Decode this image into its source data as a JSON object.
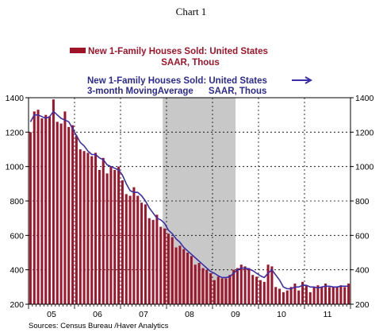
{
  "title": "Chart 1",
  "source": "Sources:  Census Bureau /Haver Analytics",
  "colors": {
    "bars": "#a0142a",
    "line": "#3a2fa8",
    "recession": "#c8c8c8",
    "bar_legend_text": "#a0142a",
    "line_legend_text": "#2c2a8f"
  },
  "chart_data": {
    "type": "bar",
    "legend": [
      {
        "line1": "New 1-Family Houses Sold: United States",
        "line2": "SAAR, Thous"
      },
      {
        "line1": "New 1-Family Houses Sold: United States",
        "line2": "3-month MovingAverage      SAAR, Thous"
      }
    ],
    "x_tick_labels": [
      "05",
      "06",
      "07",
      "08",
      "09",
      "10",
      "11"
    ],
    "y_ticks": [
      200,
      400,
      600,
      800,
      1000,
      1200,
      1400
    ],
    "ylim": [
      200,
      1400
    ],
    "grid": "dotted",
    "recession_shading": {
      "start": "2007-12",
      "end": "2009-06"
    },
    "x_start": "2005-01",
    "series": [
      {
        "name": "New 1-Family Houses Sold: United States",
        "type": "bar",
        "values": [
          1200,
          1320,
          1330,
          1280,
          1300,
          1290,
          1390,
          1260,
          1250,
          1320,
          1230,
          1240,
          1180,
          1100,
          1090,
          1080,
          1060,
          1080,
          980,
          1050,
          960,
          1000,
          980,
          1000,
          920,
          840,
          830,
          880,
          830,
          790,
          780,
          700,
          690,
          720,
          650,
          640,
          610,
          590,
          530,
          540,
          520,
          500,
          480,
          430,
          440,
          410,
          400,
          380,
          340,
          360,
          350,
          350,
          370,
          400,
          410,
          430,
          420,
          410,
          370,
          360,
          340,
          330,
          430,
          420,
          300,
          290,
          270,
          280,
          300,
          320,
          280,
          330,
          310,
          270,
          300,
          310,
          300,
          320,
          300,
          300,
          300,
          310,
          300,
          320
        ]
      },
      {
        "name": "3-month MovingAverage",
        "type": "line",
        "values": [
          1260,
          1300,
          1300,
          1290,
          1280,
          1290,
          1320,
          1300,
          1280,
          1270,
          1260,
          1220,
          1180,
          1140,
          1120,
          1090,
          1070,
          1070,
          1050,
          1040,
          1010,
          1000,
          990,
          980,
          950,
          900,
          860,
          850,
          850,
          830,
          800,
          760,
          730,
          700,
          690,
          670,
          630,
          610,
          580,
          560,
          530,
          510,
          490,
          470,
          450,
          430,
          410,
          390,
          380,
          365,
          355,
          355,
          360,
          380,
          400,
          410,
          410,
          405,
          395,
          380,
          365,
          355,
          380,
          400,
          370,
          340,
          300,
          290,
          290,
          300,
          300,
          310,
          310,
          300,
          300,
          295,
          300,
          305,
          305,
          300,
          300,
          305,
          305,
          305
        ]
      }
    ]
  }
}
